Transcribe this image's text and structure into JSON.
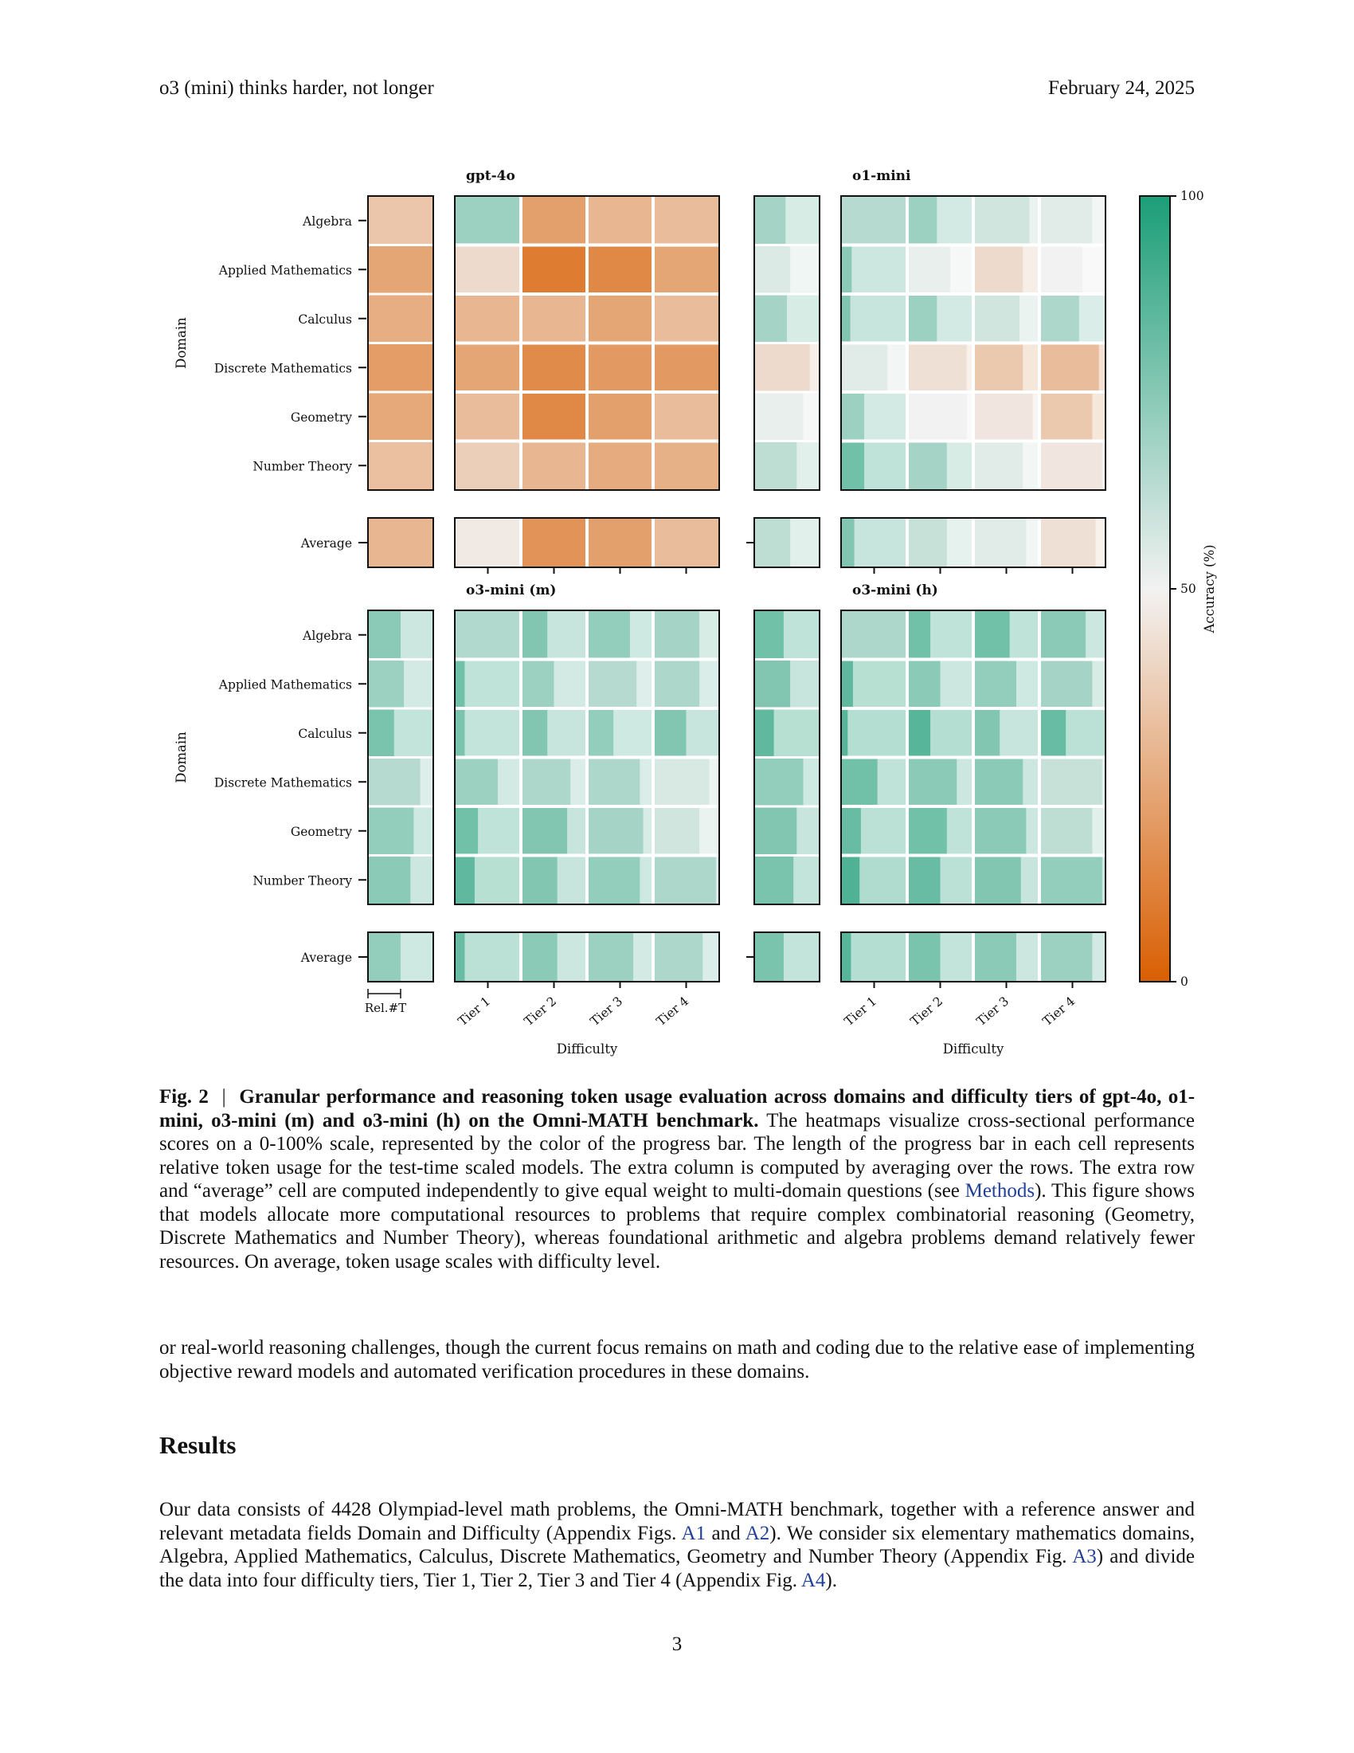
{
  "header": {
    "left": "o3 (mini) thinks harder, not longer",
    "right": "February 24, 2025"
  },
  "chart_data": {
    "type": "heatmap",
    "description_encoding": "color = accuracy (%), bar length = relative token usage",
    "domains": [
      "Algebra",
      "Applied Mathematics",
      "Calculus",
      "Discrete Mathematics",
      "Geometry",
      "Number Theory"
    ],
    "average_label": "Average",
    "tiers": [
      "Tier 1",
      "Tier 2",
      "Tier 3",
      "Tier 4"
    ],
    "ylabel": "Domain",
    "xlabel": "Difficulty",
    "reltoken_label": "Rel.#T",
    "colorbar": {
      "label": "Accuracy (%)",
      "ticks": [
        "0",
        "50",
        "100"
      ],
      "min": 0,
      "max": 100,
      "low_color": "#d95f02",
      "mid_color": "#f2f2f2",
      "high_color": "#1b9e77"
    },
    "panels": [
      {
        "name": "gpt-4o",
        "domain_avg": [
          {
            "acc": 35,
            "len": 1
          },
          {
            "acc": 24,
            "len": 1
          },
          {
            "acc": 27,
            "len": 1
          },
          {
            "acc": 21,
            "len": 1
          },
          {
            "acc": 25,
            "len": 1
          },
          {
            "acc": 33,
            "len": 1
          }
        ],
        "domain_avg_overall": {
          "acc": 30,
          "len": 1
        },
        "cells": [
          [
            {
              "acc": 70,
              "len": 1
            },
            {
              "acc": 22,
              "len": 1
            },
            {
              "acc": 30,
              "len": 1
            },
            {
              "acc": 32,
              "len": 1
            }
          ],
          [
            {
              "acc": 42,
              "len": 1
            },
            {
              "acc": 10,
              "len": 1
            },
            {
              "acc": 14,
              "len": 1
            },
            {
              "acc": 24,
              "len": 1
            }
          ],
          [
            {
              "acc": 30,
              "len": 1
            },
            {
              "acc": 30,
              "len": 1
            },
            {
              "acc": 24,
              "len": 1
            },
            {
              "acc": 32,
              "len": 1
            }
          ],
          [
            {
              "acc": 24,
              "len": 1
            },
            {
              "acc": 15,
              "len": 1
            },
            {
              "acc": 20,
              "len": 1
            },
            {
              "acc": 20,
              "len": 1
            }
          ],
          [
            {
              "acc": 32,
              "len": 1
            },
            {
              "acc": 14,
              "len": 1
            },
            {
              "acc": 22,
              "len": 1
            },
            {
              "acc": 32,
              "len": 1
            }
          ],
          [
            {
              "acc": 38,
              "len": 1
            },
            {
              "acc": 30,
              "len": 1
            },
            {
              "acc": 26,
              "len": 1
            },
            {
              "acc": 28,
              "len": 1
            }
          ]
        ],
        "avg_row": [
          {
            "acc": 47,
            "len": 1
          },
          {
            "acc": 18,
            "len": 1
          },
          {
            "acc": 22,
            "len": 1
          },
          {
            "acc": 32,
            "len": 1
          }
        ]
      },
      {
        "name": "o1-mini",
        "domain_avg": [
          {
            "acc": 68,
            "len": 0.48
          },
          {
            "acc": 55,
            "len": 0.55
          },
          {
            "acc": 68,
            "len": 0.5
          },
          {
            "acc": 42,
            "len": 0.85
          },
          {
            "acc": 52,
            "len": 0.75
          },
          {
            "acc": 62,
            "len": 0.65
          }
        ],
        "domain_avg_overall": {
          "acc": 62,
          "len": 0.55
        },
        "cells": [
          [
            {
              "acc": 64,
              "len": 0.98
            },
            {
              "acc": 70,
              "len": 0.45
            },
            {
              "acc": 58,
              "len": 0.85
            },
            {
              "acc": 54,
              "len": 0.8
            }
          ],
          [
            {
              "acc": 74,
              "len": 0.16
            },
            {
              "acc": 52,
              "len": 0.65
            },
            {
              "acc": 42,
              "len": 0.75
            },
            {
              "acc": 50,
              "len": 0.65
            }
          ],
          [
            {
              "acc": 76,
              "len": 0.14
            },
            {
              "acc": 70,
              "len": 0.45
            },
            {
              "acc": 58,
              "len": 0.7
            },
            {
              "acc": 66,
              "len": 0.6
            }
          ],
          [
            {
              "acc": 54,
              "len": 0.7
            },
            {
              "acc": 44,
              "len": 0.9
            },
            {
              "acc": 36,
              "len": 0.75
            },
            {
              "acc": 32,
              "len": 0.9
            }
          ],
          [
            {
              "acc": 70,
              "len": 0.35
            },
            {
              "acc": 50,
              "len": 0.9
            },
            {
              "acc": 46,
              "len": 0.9
            },
            {
              "acc": 36,
              "len": 0.8
            }
          ],
          [
            {
              "acc": 80,
              "len": 0.35
            },
            {
              "acc": 68,
              "len": 0.6
            },
            {
              "acc": 54,
              "len": 0.75
            },
            {
              "acc": 46,
              "len": 0.95
            }
          ]
        ],
        "avg_row": [
          {
            "acc": 76,
            "len": 0.2
          },
          {
            "acc": 60,
            "len": 0.6
          },
          {
            "acc": 54,
            "len": 0.8
          },
          {
            "acc": 44,
            "len": 0.85
          }
        ]
      },
      {
        "name": "o3-mini (m)",
        "domain_avg": [
          {
            "acc": 74,
            "len": 0.5
          },
          {
            "acc": 70,
            "len": 0.55
          },
          {
            "acc": 78,
            "len": 0.4
          },
          {
            "acc": 64,
            "len": 0.8
          },
          {
            "acc": 72,
            "len": 0.7
          },
          {
            "acc": 74,
            "len": 0.65
          }
        ],
        "domain_avg_overall": {
          "acc": 72,
          "len": 0.5
        },
        "cells": [
          [
            {
              "acc": 65,
              "len": 0.99
            },
            {
              "acc": 76,
              "len": 0.4
            },
            {
              "acc": 72,
              "len": 0.65
            },
            {
              "acc": 68,
              "len": 0.7
            }
          ],
          [
            {
              "acc": 80,
              "len": 0.15
            },
            {
              "acc": 70,
              "len": 0.5
            },
            {
              "acc": 64,
              "len": 0.75
            },
            {
              "acc": 66,
              "len": 0.7
            }
          ],
          [
            {
              "acc": 78,
              "len": 0.15
            },
            {
              "acc": 76,
              "len": 0.4
            },
            {
              "acc": 72,
              "len": 0.4
            },
            {
              "acc": 76,
              "len": 0.5
            }
          ],
          [
            {
              "acc": 70,
              "len": 0.65
            },
            {
              "acc": 66,
              "len": 0.75
            },
            {
              "acc": 66,
              "len": 0.8
            },
            {
              "acc": 56,
              "len": 0.85
            }
          ],
          [
            {
              "acc": 80,
              "len": 0.35
            },
            {
              "acc": 76,
              "len": 0.7
            },
            {
              "acc": 68,
              "len": 0.85
            },
            {
              "acc": 58,
              "len": 0.7
            }
          ],
          [
            {
              "acc": 84,
              "len": 0.3
            },
            {
              "acc": 76,
              "len": 0.55
            },
            {
              "acc": 72,
              "len": 0.8
            },
            {
              "acc": 66,
              "len": 0.95
            }
          ]
        ],
        "avg_row": [
          {
            "acc": 82,
            "len": 0.15
          },
          {
            "acc": 74,
            "len": 0.55
          },
          {
            "acc": 70,
            "len": 0.7
          },
          {
            "acc": 66,
            "len": 0.75
          }
        ]
      },
      {
        "name": "o3-mini (h)",
        "domain_avg": [
          {
            "acc": 80,
            "len": 0.45
          },
          {
            "acc": 76,
            "len": 0.55
          },
          {
            "acc": 84,
            "len": 0.3
          },
          {
            "acc": 72,
            "len": 0.75
          },
          {
            "acc": 76,
            "len": 0.65
          },
          {
            "acc": 78,
            "len": 0.6
          }
        ],
        "domain_avg_overall": {
          "acc": 78,
          "len": 0.45
        },
        "cells": [
          [
            {
              "acc": 66,
              "len": 0.99
            },
            {
              "acc": 80,
              "len": 0.35
            },
            {
              "acc": 80,
              "len": 0.55
            },
            {
              "acc": 74,
              "len": 0.7
            }
          ],
          [
            {
              "acc": 84,
              "len": 0.18
            },
            {
              "acc": 74,
              "len": 0.5
            },
            {
              "acc": 72,
              "len": 0.65
            },
            {
              "acc": 68,
              "len": 0.8
            }
          ],
          [
            {
              "acc": 86,
              "len": 0.1
            },
            {
              "acc": 86,
              "len": 0.35
            },
            {
              "acc": 76,
              "len": 0.4
            },
            {
              "acc": 82,
              "len": 0.4
            }
          ],
          [
            {
              "acc": 80,
              "len": 0.55
            },
            {
              "acc": 74,
              "len": 0.75
            },
            {
              "acc": 74,
              "len": 0.75
            },
            {
              "acc": 60,
              "len": 0.95
            }
          ],
          [
            {
              "acc": 82,
              "len": 0.3
            },
            {
              "acc": 80,
              "len": 0.6
            },
            {
              "acc": 74,
              "len": 0.8
            },
            {
              "acc": 62,
              "len": 0.8
            }
          ],
          [
            {
              "acc": 88,
              "len": 0.28
            },
            {
              "acc": 82,
              "len": 0.5
            },
            {
              "acc": 76,
              "len": 0.72
            },
            {
              "acc": 72,
              "len": 0.95
            }
          ]
        ],
        "avg_row": [
          {
            "acc": 86,
            "len": 0.15
          },
          {
            "acc": 78,
            "len": 0.5
          },
          {
            "acc": 74,
            "len": 0.65
          },
          {
            "acc": 70,
            "len": 0.8
          }
        ]
      }
    ]
  },
  "caption": {
    "fig_label": "Fig. 2",
    "separator": "|",
    "bold_title": "Granular performance and reasoning token usage evaluation across domains and difficulty tiers of gpt-4o, o1-mini, o3-mini (m) and o3-mini (h) on the Omni-MATH benchmark.",
    "text_1": " The heatmaps visualize cross-sectional performance scores on a 0-100% scale, represented by the color of the progress bar. The length of the progress bar in each cell represents relative token usage for the test-time scaled models. The extra column is computed by averaging over the rows. The extra row and “average” cell are computed independently to give equal weight to multi-domain questions (see ",
    "link": "Methods",
    "text_2": "). This figure shows that models allocate more computational resources to problems that require complex combinatorial reasoning (Geometry, Discrete Mathematics and Number Theory), whereas foundational arithmetic and algebra problems demand relatively fewer resources. On average, token usage scales with difficulty level."
  },
  "body": {
    "para1": "or real-world reasoning challenges, though the current focus remains on math and coding due to the relative ease of implementing objective reward models and automated verification procedures in these domains.",
    "results_heading": "Results",
    "para2_a": "Our data consists of 4428 Olympiad-level math problems, the Omni-MATH benchmark, together with a reference answer and relevant metadata fields Domain and Difficulty (Appendix Figs. ",
    "ref_a1": "A1",
    "para2_b": " and ",
    "ref_a2": "A2",
    "para2_c": "). We consider six elementary mathematics domains, Algebra, Applied Mathematics, Calculus, Discrete Mathematics, Geometry and Number Theory (Appendix Fig. ",
    "ref_a3": "A3",
    "para2_d": ") and divide the data into four difficulty tiers, Tier 1, Tier 2, Tier 3 and Tier 4 (Appendix Fig. ",
    "ref_a4": "A4",
    "para2_e": ")."
  },
  "page_number": "3"
}
